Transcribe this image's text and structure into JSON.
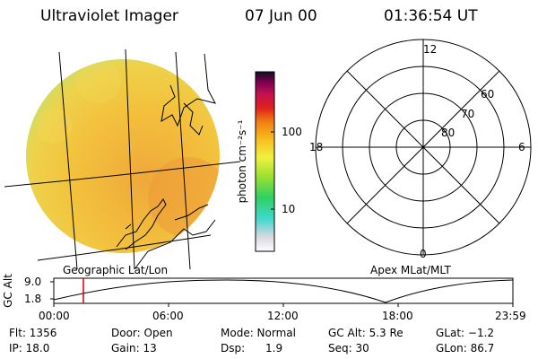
{
  "header": {
    "instrument": "Ultraviolet Imager",
    "date": "07 Jun 00",
    "time": "01:36:54 UT"
  },
  "image_panel": {
    "label": "Geographic Lat/Lon"
  },
  "colorbar": {
    "unit_label": "photon cm⁻²s⁻¹",
    "tick_labels": [
      "100",
      "10"
    ]
  },
  "polar_panel": {
    "label": "Apex MLat/MLT",
    "mlt_labels": {
      "top": "12",
      "left": "18",
      "right": "6",
      "bottom": "0"
    },
    "lat_labels": [
      "60",
      "70",
      "80"
    ]
  },
  "orbit_plot": {
    "ylabel": "GC Alt",
    "y_ticks": [
      "9.0",
      "1.8"
    ],
    "x_ticks": [
      "00:00",
      "06:00",
      "12:00",
      "18:00",
      "23:59"
    ],
    "line_color": "#000000",
    "marker_color": "#cc0000"
  },
  "info": {
    "row1": {
      "flt": "Flt: 1356",
      "door": "Door: Open",
      "mode": "Mode: Normal",
      "gc_alt": "GC Alt: 5.3 Re",
      "glat": "GLat:  −1.2"
    },
    "row2": {
      "ip": "IP: 18.0",
      "gain": "Gain: 13",
      "dsp": "Dsp:      1.9",
      "seq": "Seq: 30",
      "glon": "GLon:  86.7"
    }
  },
  "colors": {
    "disk_base": "#f2c23a",
    "grid_line": "#000000"
  }
}
